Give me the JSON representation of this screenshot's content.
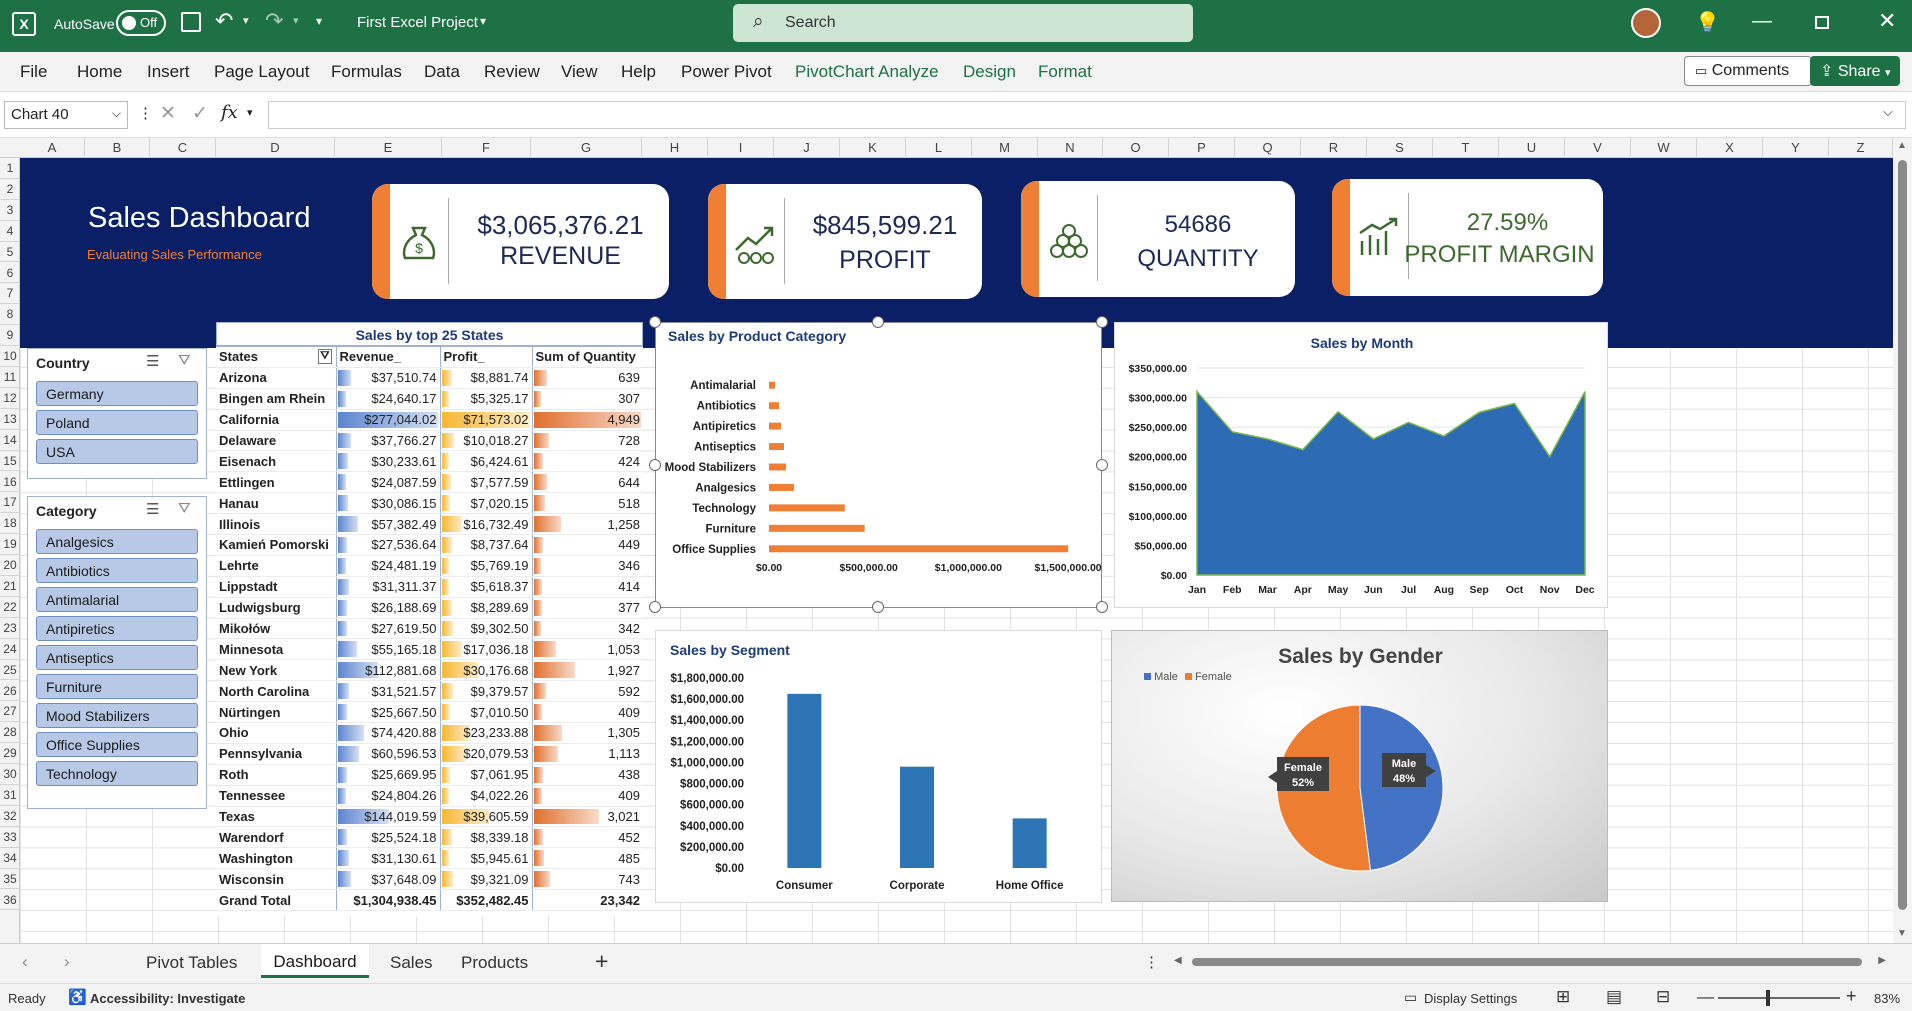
{
  "titlebar": {
    "autosave_label": "AutoSave",
    "autosave_state": "Off",
    "doc_title": "First Excel Project",
    "search_placeholder": "Search"
  },
  "ribbon": {
    "tabs": [
      "File",
      "Home",
      "Insert",
      "Page Layout",
      "Formulas",
      "Data",
      "Review",
      "View",
      "Help",
      "Power Pivot",
      "PivotChart Analyze",
      "Design",
      "Format"
    ],
    "comments": "Comments",
    "share": "Share"
  },
  "formula": {
    "name_box": "Chart 40",
    "fx": "fx"
  },
  "columns": [
    "A",
    "B",
    "C",
    "D",
    "E",
    "F",
    "G",
    "H",
    "I",
    "J",
    "K",
    "L",
    "M",
    "N",
    "O",
    "P",
    "Q",
    "R",
    "S",
    "T",
    "U",
    "V",
    "W",
    "X",
    "Y",
    "Z"
  ],
  "rows": [
    "1",
    "2",
    "3",
    "4",
    "5",
    "6",
    "7",
    "8",
    "9",
    "10",
    "11",
    "12",
    "13",
    "14",
    "15",
    "16",
    "17",
    "18",
    "19",
    "20",
    "21",
    "22",
    "23",
    "24",
    "25",
    "26",
    "27",
    "28",
    "29",
    "30",
    "31",
    "32",
    "33",
    "34",
    "35",
    "36"
  ],
  "dashboard": {
    "title": "Sales Dashboard",
    "subtitle": "Evaluating Sales Performance"
  },
  "kpis": [
    {
      "value": "$3,065,376.21",
      "label": "REVENUE",
      "icon": "money-bag-icon"
    },
    {
      "value": "$845,599.21",
      "label": "PROFIT",
      "icon": "profit-growth-icon"
    },
    {
      "value": "54686",
      "label": "QUANTITY",
      "icon": "coins-stack-icon"
    },
    {
      "value": "27.59%",
      "label": "PROFIT MARGIN",
      "icon": "margin-chart-icon"
    }
  ],
  "slicers": {
    "country": {
      "title": "Country",
      "items": [
        "Germany",
        "Poland",
        "USA"
      ]
    },
    "category": {
      "title": "Category",
      "items": [
        "Analgesics",
        "Antibiotics",
        "Antimalarial",
        "Antipiretics",
        "Antiseptics",
        "Furniture",
        "Mood Stabilizers",
        "Office Supplies",
        "Technology"
      ]
    }
  },
  "pivot": {
    "title": "Sales by top 25 States",
    "headers": [
      "States",
      "Revenue_",
      "Profit_",
      "Sum of Quantity"
    ],
    "rows": [
      [
        "Arizona",
        "$37,510.74",
        "$8,881.74",
        "639"
      ],
      [
        "Bingen am Rhein",
        "$24,640.17",
        "$5,325.17",
        "307"
      ],
      [
        "California",
        "$277,044.02",
        "$71,573.02",
        "4,949"
      ],
      [
        "Delaware",
        "$37,766.27",
        "$10,018.27",
        "728"
      ],
      [
        "Eisenach",
        "$30,233.61",
        "$6,424.61",
        "424"
      ],
      [
        "Ettlingen",
        "$24,087.59",
        "$7,577.59",
        "644"
      ],
      [
        "Hanau",
        "$30,086.15",
        "$7,020.15",
        "518"
      ],
      [
        "Illinois",
        "$57,382.49",
        "$16,732.49",
        "1,258"
      ],
      [
        "Kamień Pomorski",
        "$27,536.64",
        "$8,737.64",
        "449"
      ],
      [
        "Lehrte",
        "$24,481.19",
        "$5,769.19",
        "346"
      ],
      [
        "Lippstadt",
        "$31,311.37",
        "$5,618.37",
        "414"
      ],
      [
        "Ludwigsburg",
        "$26,188.69",
        "$8,289.69",
        "377"
      ],
      [
        "Mikołów",
        "$27,619.50",
        "$9,302.50",
        "342"
      ],
      [
        "Minnesota",
        "$55,165.18",
        "$17,036.18",
        "1,053"
      ],
      [
        "New York",
        "$112,881.68",
        "$30,176.68",
        "1,927"
      ],
      [
        "North Carolina",
        "$31,521.57",
        "$9,379.57",
        "592"
      ],
      [
        "Nürtingen",
        "$25,667.50",
        "$7,010.50",
        "409"
      ],
      [
        "Ohio",
        "$74,420.88",
        "$23,233.88",
        "1,305"
      ],
      [
        "Pennsylvania",
        "$60,596.53",
        "$20,079.53",
        "1,113"
      ],
      [
        "Roth",
        "$25,669.95",
        "$7,061.95",
        "438"
      ],
      [
        "Tennessee",
        "$24,804.26",
        "$4,022.26",
        "409"
      ],
      [
        "Texas",
        "$144,019.59",
        "$39,605.59",
        "3,021"
      ],
      [
        "Warendorf",
        "$25,524.18",
        "$8,339.18",
        "452"
      ],
      [
        "Washington",
        "$31,130.61",
        "$5,945.61",
        "485"
      ],
      [
        "Wisconsin",
        "$37,648.09",
        "$9,321.09",
        "743"
      ]
    ],
    "total": [
      "Grand Total",
      "$1,304,938.45",
      "$352,482.45",
      "23,342"
    ],
    "bar_values": {
      "revenue": [
        37510.74,
        24640.17,
        277044.02,
        37766.27,
        30233.61,
        24087.59,
        30086.15,
        57382.49,
        27536.64,
        24481.19,
        31311.37,
        26188.69,
        27619.5,
        55165.18,
        112881.68,
        31521.57,
        25667.5,
        74420.88,
        60596.53,
        25669.95,
        24804.26,
        144019.59,
        25524.18,
        31130.61,
        37648.09
      ],
      "profit": [
        8881.74,
        5325.17,
        71573.02,
        10018.27,
        6424.61,
        7577.59,
        7020.15,
        16732.49,
        8737.64,
        5769.19,
        5618.37,
        8289.69,
        9302.5,
        17036.18,
        30176.68,
        9379.57,
        7010.5,
        23233.88,
        20079.53,
        7061.95,
        4022.26,
        39605.59,
        8339.18,
        5945.61,
        9321.09
      ],
      "quantity": [
        639,
        307,
        4949,
        728,
        424,
        644,
        518,
        1258,
        449,
        346,
        414,
        377,
        342,
        1053,
        1927,
        592,
        409,
        1305,
        1113,
        438,
        409,
        3021,
        452,
        485,
        743
      ]
    },
    "colors": {
      "revenue": "#5b85d0",
      "profit": "#f7b731",
      "quantity": "#e0702d"
    }
  },
  "chart_data": [
    {
      "id": "product",
      "type": "bar",
      "orientation": "horizontal",
      "title": "Sales by Product Category",
      "categories": [
        "Antimalarial",
        "Antibiotics",
        "Antipiretics",
        "Antiseptics",
        "Mood Stabilizers",
        "Analgesics",
        "Technology",
        "Furniture",
        "Office Supplies"
      ],
      "values": [
        30000,
        50000,
        60000,
        75000,
        85000,
        125000,
        380000,
        480000,
        1500000
      ],
      "xlim": [
        0,
        1600000
      ],
      "ticks": [
        "$0.00",
        "$500,000.00",
        "$1,000,000.00",
        "$1,500,000.00"
      ],
      "tick_values": [
        0,
        500000,
        1000000,
        1500000
      ],
      "color": "#ef7f35"
    },
    {
      "id": "month",
      "type": "area",
      "title": "Sales by Month",
      "categories": [
        "Jan",
        "Feb",
        "Mar",
        "Apr",
        "May",
        "Jun",
        "Jul",
        "Aug",
        "Sep",
        "Oct",
        "Nov",
        "Dec"
      ],
      "values": [
        310000,
        242000,
        230000,
        212000,
        276000,
        230000,
        258000,
        235000,
        275000,
        290000,
        200000,
        310000
      ],
      "ylim": [
        0,
        350000
      ],
      "ticks": [
        "$0.00",
        "$50,000.00",
        "$100,000.00",
        "$150,000.00",
        "$200,000.00",
        "$250,000.00",
        "$300,000.00",
        "$350,000.00"
      ],
      "tick_values": [
        0,
        50000,
        100000,
        150000,
        200000,
        250000,
        300000,
        350000
      ],
      "color": "#2e6bb5"
    },
    {
      "id": "segment",
      "type": "bar",
      "title": "Sales by Segment",
      "categories": [
        "Consumer",
        "Corporate",
        "Home Office"
      ],
      "values": [
        1650000,
        960000,
        470000
      ],
      "ylim": [
        0,
        1800000
      ],
      "ticks": [
        "$0.00",
        "$200,000.00",
        "$400,000.00",
        "$600,000.00",
        "$800,000.00",
        "$1,000,000.00",
        "$1,200,000.00",
        "$1,400,000.00",
        "$1,600,000.00",
        "$1,800,000.00"
      ],
      "tick_values": [
        0,
        200000,
        400000,
        600000,
        800000,
        1000000,
        1200000,
        1400000,
        1600000,
        1800000
      ],
      "color": "#2e75b6"
    },
    {
      "id": "gender",
      "type": "pie",
      "title": "Sales by Gender",
      "categories": [
        "Male",
        "Female"
      ],
      "values": [
        48,
        52
      ],
      "labels": [
        "Male 48%",
        "Female 52%"
      ],
      "legend": "top-left",
      "colors": [
        "#4472c4",
        "#ed7d31"
      ]
    }
  ],
  "sheet_tabs": [
    "Pivot Tables",
    "Dashboard",
    "Sales",
    "Products"
  ],
  "status": {
    "ready": "Ready",
    "accessibility": "Accessibility: Investigate",
    "display": "Display Settings",
    "zoom": "83%"
  }
}
